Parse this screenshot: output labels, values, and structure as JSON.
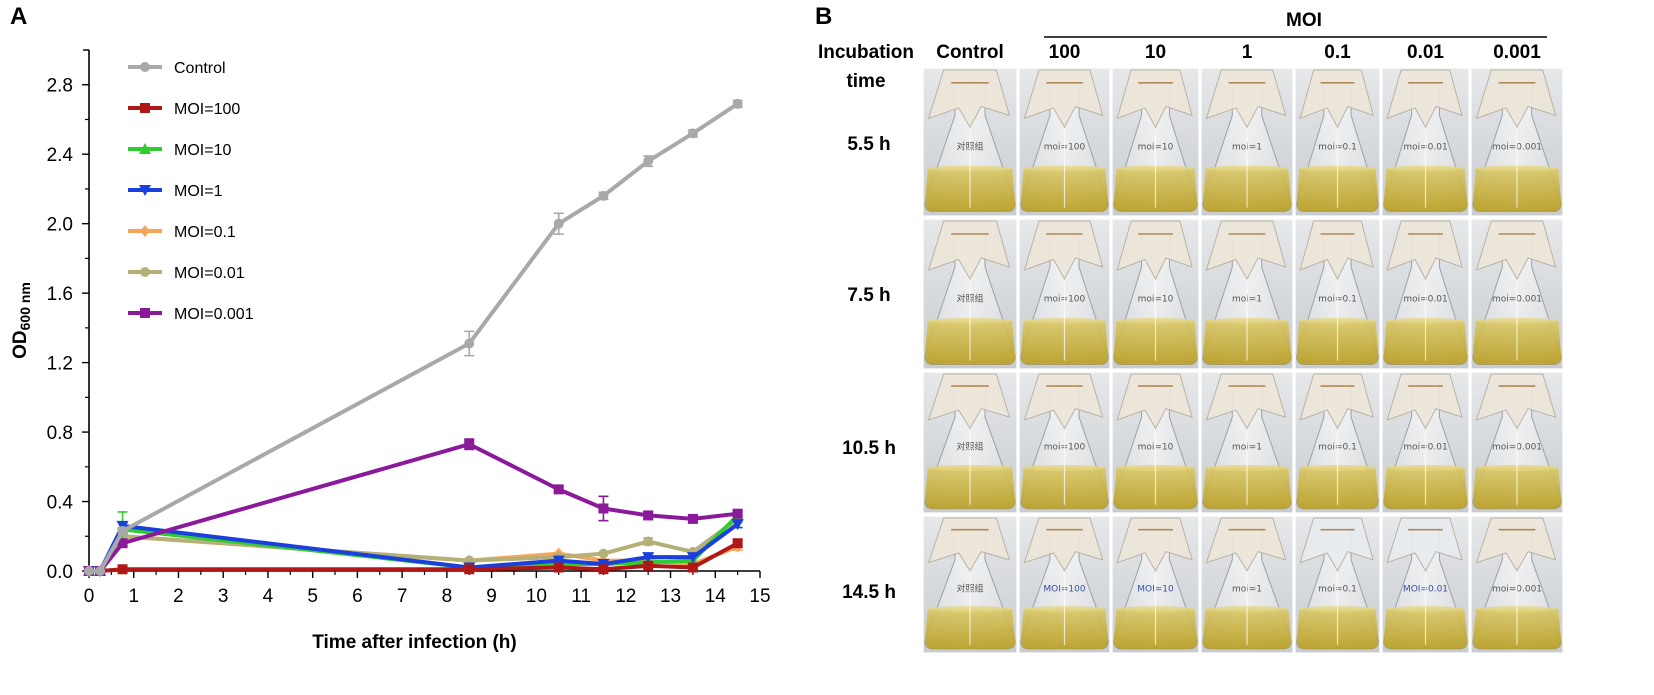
{
  "panels": {
    "a_label": "A",
    "b_label": "B"
  },
  "chart_data": {
    "type": "line",
    "title": "",
    "xlabel": "Time after infection (h)",
    "ylabel_main": "OD",
    "ylabel_sub": "600 nm",
    "xlim": [
      0,
      15
    ],
    "ylim": [
      0,
      3.0
    ],
    "x_ticks": [
      "0",
      "1",
      "2",
      "3",
      "4",
      "5",
      "6",
      "7",
      "8",
      "9",
      "10",
      "11",
      "12",
      "13",
      "14",
      "15"
    ],
    "y_ticks": [
      "0.0",
      "0.4",
      "0.8",
      "1.2",
      "1.6",
      "2.0",
      "2.4",
      "2.8"
    ],
    "legend_position": "top-left",
    "series": [
      {
        "name": "Control",
        "color": "#a9a9a9",
        "marker": "circle",
        "x": [
          0,
          0.25,
          0.75,
          8.5,
          10.5,
          11.5,
          12.5,
          13.5,
          14.5
        ],
        "y": [
          0.0,
          0.0,
          0.23,
          1.31,
          2.0,
          2.16,
          2.36,
          2.52,
          2.69
        ],
        "err": [
          0,
          0,
          0.02,
          0.07,
          0.06,
          0.02,
          0.03,
          0.02,
          0.02
        ]
      },
      {
        "name": "MOI=100",
        "color": "#b01818",
        "marker": "square",
        "x": [
          0,
          0.25,
          0.75,
          8.5,
          10.5,
          11.5,
          12.5,
          13.5,
          14.5
        ],
        "y": [
          0.0,
          0.0,
          0.01,
          0.01,
          0.02,
          0.01,
          0.03,
          0.02,
          0.16
        ],
        "err": [
          0,
          0,
          0,
          0,
          0,
          0,
          0,
          0,
          0.02
        ]
      },
      {
        "name": "MOI=10",
        "color": "#2ecc2e",
        "marker": "triangle-up",
        "x": [
          0,
          0.25,
          0.75,
          8.5,
          10.5,
          11.5,
          12.5,
          13.5,
          14.5
        ],
        "y": [
          0.0,
          0.0,
          0.24,
          0.02,
          0.04,
          0.04,
          0.05,
          0.06,
          0.32
        ],
        "err": [
          0,
          0,
          0.1,
          0,
          0,
          0,
          0,
          0,
          0.02
        ]
      },
      {
        "name": "MOI=1",
        "color": "#1a3fdd",
        "marker": "triangle-down",
        "x": [
          0,
          0.25,
          0.75,
          8.5,
          10.5,
          11.5,
          12.5,
          13.5,
          14.5
        ],
        "y": [
          0.0,
          0.0,
          0.26,
          0.02,
          0.06,
          0.04,
          0.08,
          0.08,
          0.27
        ],
        "err": [
          0,
          0,
          0.02,
          0,
          0,
          0,
          0,
          0,
          0.02
        ]
      },
      {
        "name": "MOI=0.1",
        "color": "#f5a65b",
        "marker": "diamond",
        "x": [
          0,
          0.25,
          0.75,
          8.5,
          10.5,
          11.5,
          12.5,
          13.5,
          14.5
        ],
        "y": [
          0.0,
          0.0,
          0.2,
          0.06,
          0.1,
          0.06,
          0.06,
          0.04,
          0.14
        ],
        "err": [
          0,
          0,
          0.02,
          0,
          0,
          0,
          0,
          0,
          0.02
        ]
      },
      {
        "name": "MOI=0.01",
        "color": "#b5b077",
        "marker": "circle",
        "x": [
          0,
          0.25,
          0.75,
          8.5,
          10.5,
          11.5,
          12.5,
          13.5,
          14.5
        ],
        "y": [
          0.0,
          0.0,
          0.2,
          0.06,
          0.08,
          0.1,
          0.17,
          0.11,
          0.3
        ],
        "err": [
          0,
          0,
          0.02,
          0,
          0,
          0,
          0.02,
          0,
          0.02
        ]
      },
      {
        "name": "MOI=0.001",
        "color": "#8b1a9b",
        "marker": "square",
        "x": [
          0,
          0.25,
          0.75,
          8.5,
          10.5,
          11.5,
          12.5,
          13.5,
          14.5
        ],
        "y": [
          0.0,
          0.0,
          0.16,
          0.73,
          0.47,
          0.36,
          0.32,
          0.3,
          0.33
        ],
        "err": [
          0,
          0,
          0.02,
          0.03,
          0.02,
          0.07,
          0.02,
          0.02,
          0.02
        ]
      }
    ]
  },
  "photo_grid": {
    "moi_header": "MOI",
    "incubation_label_line1": "Incubation",
    "incubation_label_line2": "time",
    "columns": [
      "Control",
      "100",
      "10",
      "1",
      "0.1",
      "0.01",
      "0.001"
    ],
    "rows": [
      "5.5 h",
      "7.5 h",
      "10.5 h",
      "14.5 h"
    ],
    "flask_labels": [
      [
        "对照组",
        "moi=100",
        "moi=10",
        "moi=1",
        "moi=0.1",
        "moi=0.01",
        "moi=0.001"
      ],
      [
        "对照组",
        "moi=100",
        "moi=10",
        "moi=1",
        "moi=0.1",
        "moi=0.01",
        "moi=0.001"
      ],
      [
        "对照组",
        "moi=100",
        "moi=10",
        "moi=1",
        "moi=0.1",
        "moi=0.01",
        "moi=0.001"
      ],
      [
        "对照组",
        "MOI=100",
        "MOI=10",
        "moi=1",
        "moi=0.1",
        "MOI=0.01",
        "moi=0.001"
      ]
    ],
    "liquid_color": "#c9b23a",
    "background_color": "#d7dadc"
  }
}
